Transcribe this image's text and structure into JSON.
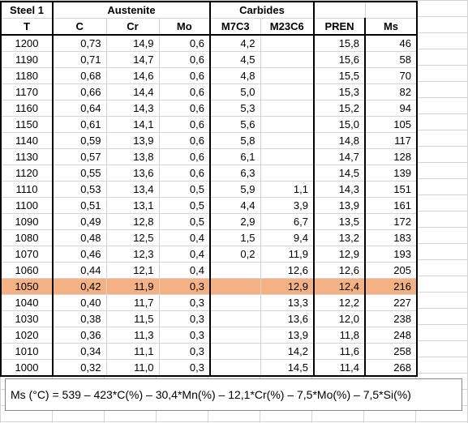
{
  "header": {
    "steel": "Steel 1",
    "austenite": "Austenite",
    "carbides": "Carbides",
    "cols": [
      "T",
      "C",
      "Cr",
      "Mo",
      "M7C3",
      "M23C6",
      "PREN",
      "Ms"
    ]
  },
  "rows": [
    [
      "1200",
      "0,73",
      "14,9",
      "0,6",
      "4,2",
      "",
      "15,8",
      "46"
    ],
    [
      "1190",
      "0,71",
      "14,7",
      "0,6",
      "4,5",
      "",
      "15,6",
      "58"
    ],
    [
      "1180",
      "0,68",
      "14,6",
      "0,6",
      "4,8",
      "",
      "15,5",
      "70"
    ],
    [
      "1170",
      "0,66",
      "14,4",
      "0,6",
      "5,0",
      "",
      "15,3",
      "82"
    ],
    [
      "1160",
      "0,64",
      "14,3",
      "0,6",
      "5,3",
      "",
      "15,2",
      "94"
    ],
    [
      "1150",
      "0,61",
      "14,1",
      "0,6",
      "5,6",
      "",
      "15,0",
      "105"
    ],
    [
      "1140",
      "0,59",
      "13,9",
      "0,6",
      "5,8",
      "",
      "14,8",
      "117"
    ],
    [
      "1130",
      "0,57",
      "13,8",
      "0,6",
      "6,1",
      "",
      "14,7",
      "128"
    ],
    [
      "1120",
      "0,55",
      "13,6",
      "0,6",
      "6,3",
      "",
      "14,5",
      "139"
    ],
    [
      "1110",
      "0,53",
      "13,4",
      "0,5",
      "5,9",
      "1,1",
      "14,3",
      "151"
    ],
    [
      "1100",
      "0,51",
      "13,1",
      "0,5",
      "4,4",
      "3,9",
      "13,9",
      "161"
    ],
    [
      "1090",
      "0,49",
      "12,8",
      "0,5",
      "2,9",
      "6,7",
      "13,5",
      "172"
    ],
    [
      "1080",
      "0,48",
      "12,5",
      "0,4",
      "1,5",
      "9,4",
      "13,2",
      "183"
    ],
    [
      "1070",
      "0,46",
      "12,3",
      "0,4",
      "0,2",
      "11,9",
      "12,9",
      "193"
    ],
    [
      "1060",
      "0,44",
      "12,1",
      "0,4",
      "",
      "12,6",
      "12,6",
      "205"
    ],
    [
      "1050",
      "0,42",
      "11,9",
      "0,3",
      "",
      "12,9",
      "12,4",
      "216"
    ],
    [
      "1040",
      "0,40",
      "11,7",
      "0,3",
      "",
      "13,3",
      "12,2",
      "227"
    ],
    [
      "1030",
      "0,38",
      "11,5",
      "0,3",
      "",
      "13,6",
      "12,0",
      "238"
    ],
    [
      "1020",
      "0,36",
      "11,3",
      "0,3",
      "",
      "13,9",
      "11,8",
      "248"
    ],
    [
      "1010",
      "0,34",
      "11,1",
      "0,3",
      "",
      "14,2",
      "11,6",
      "258"
    ],
    [
      "1000",
      "0,32",
      "11,0",
      "0,3",
      "",
      "14,5",
      "11,4",
      "268"
    ]
  ],
  "highlight_row": "1050",
  "highlight_color": "#f4b183",
  "formula": "Ms (°C) = 539 – 423*C(%) – 30,4*Mn(%) – 12,1*Cr(%) – 7,5*Mo(%) –  7,5*Si(%)"
}
